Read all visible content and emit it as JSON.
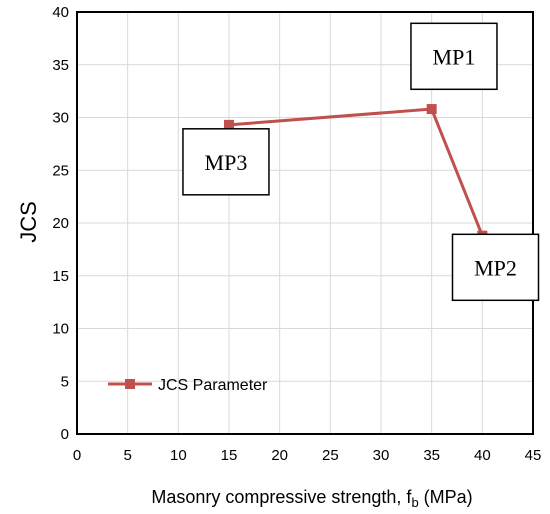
{
  "chart_data": {
    "type": "line",
    "title": "",
    "xlabel": "Masonry compressive strength, f",
    "xlabel_sub": "b",
    "xlabel_unit": " (MPa)",
    "ylabel": "JCS",
    "xlim": [
      0,
      45
    ],
    "ylim": [
      0,
      40
    ],
    "xticks": [
      0,
      5,
      10,
      15,
      20,
      25,
      30,
      35,
      40,
      45
    ],
    "yticks": [
      0,
      5,
      10,
      15,
      20,
      25,
      30,
      35,
      40
    ],
    "grid": true,
    "legend_position": "bottom-left",
    "series": [
      {
        "name": "JCS Parameter",
        "color": "#C0504D",
        "marker": "square",
        "x": [
          15,
          35,
          40
        ],
        "y": [
          29.3,
          30.8,
          18.8
        ]
      }
    ],
    "annotations": [
      {
        "text": "MP1",
        "x": 37.2,
        "y": 35.8
      },
      {
        "text": "MP3",
        "x": 14.7,
        "y": 25.8
      },
      {
        "text": "MP2",
        "x": 41.3,
        "y": 15.8
      }
    ]
  }
}
